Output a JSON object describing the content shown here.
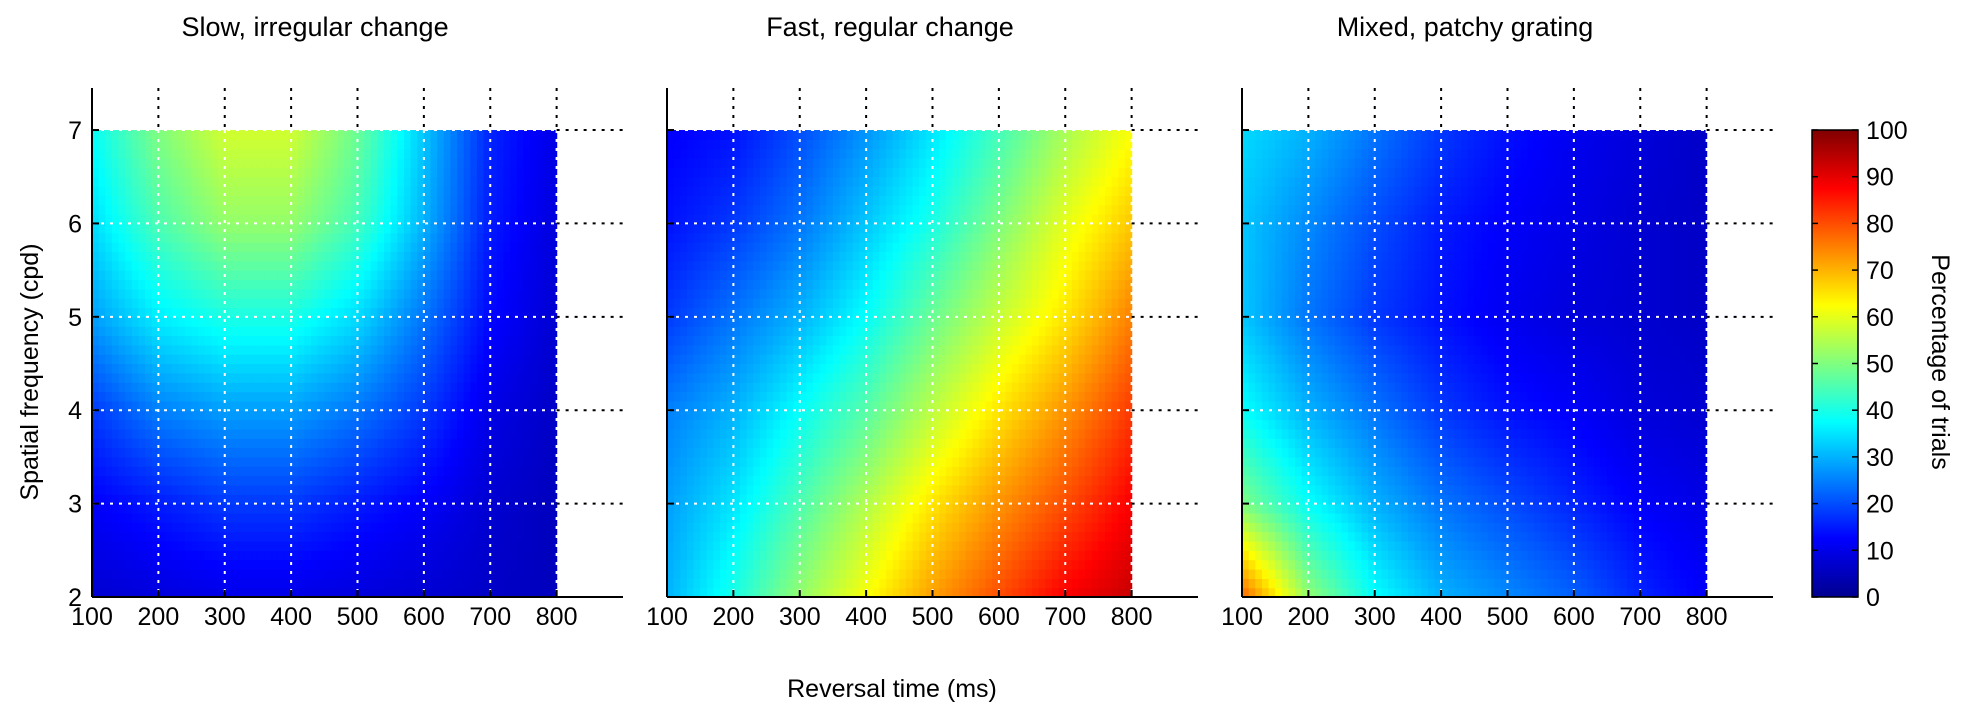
{
  "chart_data": {
    "type": "heatmap",
    "xlabel": "Reversal time (ms)",
    "ylabel": "Spatial frequency (cpd)",
    "x_ticks": [
      "100",
      "200",
      "300",
      "400",
      "500",
      "600",
      "700",
      "800"
    ],
    "y_ticks": [
      "2",
      "3",
      "4",
      "5",
      "6",
      "7"
    ],
    "xlim": [
      100,
      900
    ],
    "ylim": [
      2,
      7.45
    ],
    "x": [
      100,
      200,
      300,
      400,
      500,
      600,
      700,
      800
    ],
    "y": [
      2,
      3,
      4,
      5,
      6,
      7
    ],
    "grid": true,
    "colormap": "jet",
    "colorbar": {
      "label": "Percentage of trials",
      "range": [
        0,
        100
      ],
      "ticks": [
        "0",
        "10",
        "20",
        "30",
        "40",
        "50",
        "60",
        "70",
        "80",
        "90",
        "100"
      ]
    },
    "panels": [
      {
        "title": "Slow, irregular change",
        "values": [
          [
            8,
            9,
            10,
            10,
            9,
            8,
            7,
            6
          ],
          [
            12,
            15,
            18,
            18,
            15,
            12,
            8,
            6
          ],
          [
            18,
            25,
            28,
            28,
            24,
            18,
            10,
            7
          ],
          [
            28,
            36,
            40,
            40,
            34,
            24,
            13,
            8
          ],
          [
            34,
            45,
            52,
            52,
            44,
            30,
            15,
            9
          ],
          [
            38,
            50,
            58,
            58,
            48,
            32,
            16,
            10
          ]
        ]
      },
      {
        "title": "Fast, regular change",
        "values": [
          [
            30,
            40,
            52,
            62,
            72,
            80,
            88,
            93
          ],
          [
            28,
            35,
            45,
            55,
            65,
            73,
            80,
            88
          ],
          [
            25,
            30,
            38,
            46,
            56,
            65,
            73,
            82
          ],
          [
            18,
            24,
            30,
            38,
            48,
            57,
            65,
            75
          ],
          [
            14,
            18,
            24,
            32,
            40,
            50,
            60,
            68
          ],
          [
            12,
            14,
            20,
            27,
            35,
            44,
            54,
            62
          ]
        ]
      },
      {
        "title": "Mixed, patchy grating",
        "values": [
          [
            78,
            52,
            38,
            30,
            26,
            22,
            16,
            12
          ],
          [
            50,
            38,
            30,
            24,
            20,
            16,
            12,
            10
          ],
          [
            38,
            30,
            24,
            18,
            14,
            12,
            9,
            8
          ],
          [
            32,
            24,
            18,
            14,
            11,
            9,
            8,
            7
          ],
          [
            32,
            26,
            20,
            15,
            12,
            10,
            8,
            7
          ],
          [
            34,
            30,
            24,
            18,
            14,
            11,
            9,
            7
          ]
        ]
      }
    ]
  }
}
